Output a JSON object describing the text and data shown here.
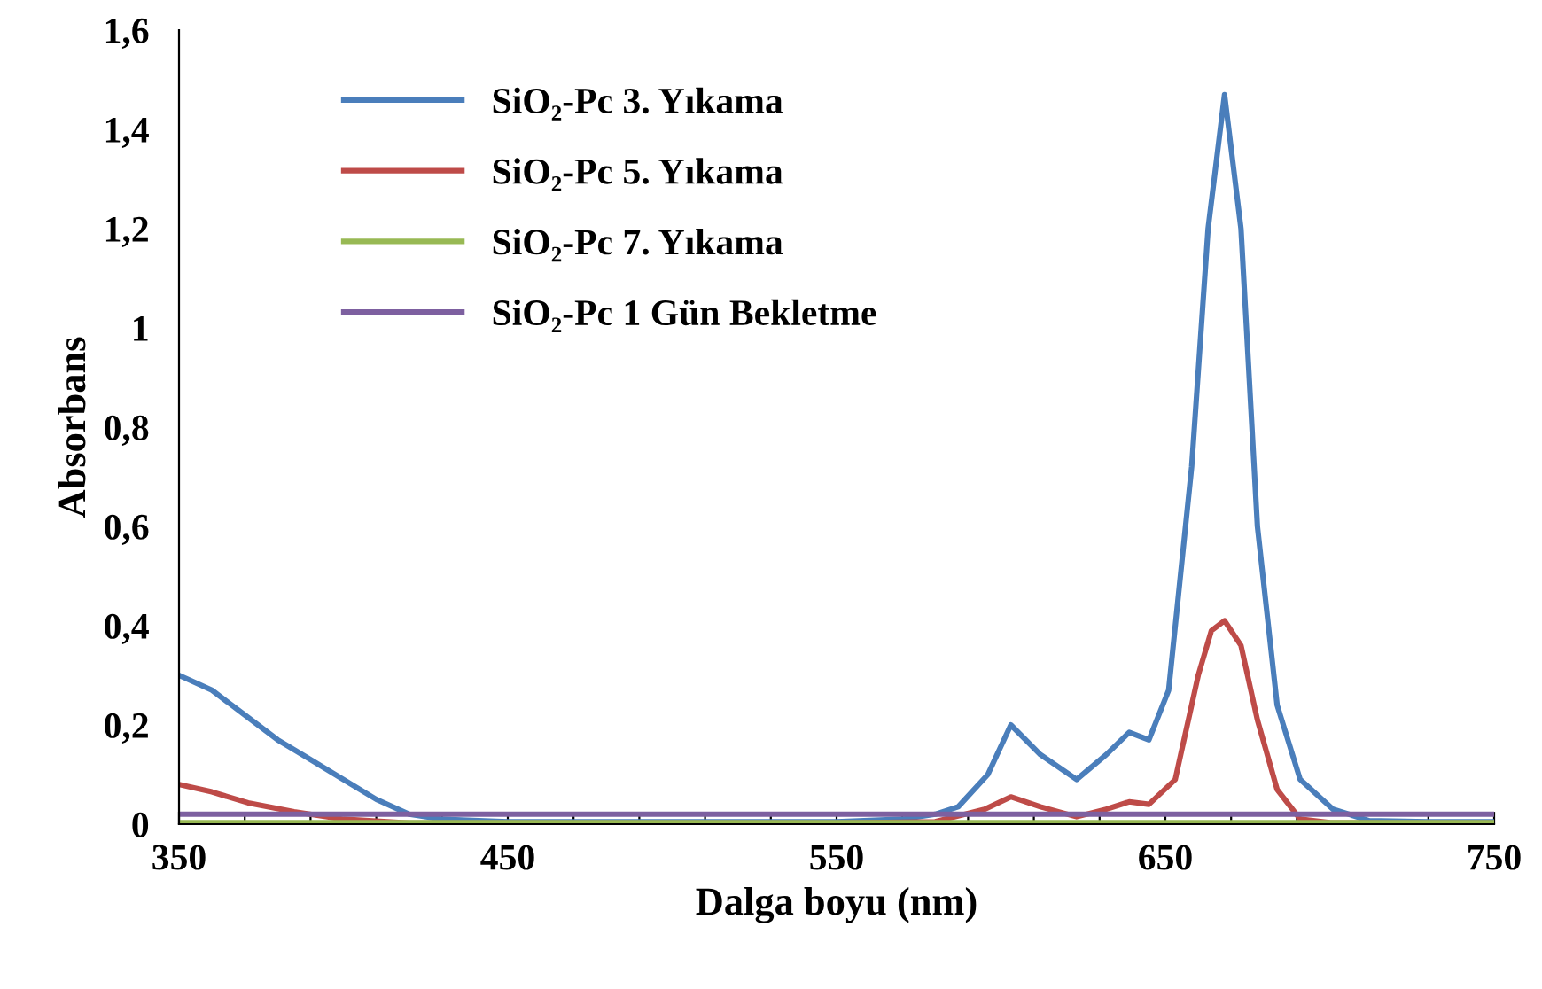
{
  "chart_data": {
    "type": "line",
    "xlabel": "Dalga boyu (nm)",
    "ylabel": "Absorbans",
    "xlim": [
      350,
      750
    ],
    "xticks": [
      350,
      {
        "value": 370,
        "label": null
      },
      {
        "value": 390,
        "label": null
      },
      {
        "value": 410,
        "label": null
      },
      {
        "value": 430,
        "label": null
      },
      450,
      {
        "value": 470,
        "label": null
      },
      {
        "value": 490,
        "label": null
      },
      {
        "value": 510,
        "label": null
      },
      {
        "value": 530,
        "label": null
      },
      550,
      {
        "value": 570,
        "label": null
      },
      {
        "value": 590,
        "label": null
      },
      {
        "value": 610,
        "label": null
      },
      {
        "value": 630,
        "label": null
      },
      650,
      {
        "value": 670,
        "label": null
      },
      {
        "value": 690,
        "label": null
      },
      {
        "value": 710,
        "label": null
      },
      {
        "value": 730,
        "label": null
      },
      750
    ],
    "ylim": [
      0,
      1.6
    ],
    "yticks": [
      0,
      {
        "value": 0.2,
        "label": "0,2"
      },
      {
        "value": 0.4,
        "label": "0,4"
      },
      {
        "value": 0.6,
        "label": "0,6"
      },
      {
        "value": 0.8,
        "label": "0,8"
      },
      1,
      {
        "value": 1.2,
        "label": "1,2"
      },
      {
        "value": 1.4,
        "label": "1,4"
      },
      {
        "value": 1.6,
        "label": "1,6"
      }
    ],
    "grid": false,
    "legend": "top left",
    "marker": "none",
    "line_style": "solid",
    "series": [
      {
        "name": "SiO₂-Pc 3. Yıkama",
        "color": "#4a7ebb",
        "x": [
          350,
          360,
          370,
          380,
          390,
          400,
          410,
          420,
          430,
          450,
          550,
          570,
          580,
          587,
          596,
          603,
          612,
          623,
          632,
          639,
          645,
          651,
          658,
          663,
          668,
          673,
          678,
          684,
          691,
          701,
          712,
          730,
          750
        ],
        "values": [
          0.3,
          0.27,
          0.22,
          0.17,
          0.13,
          0.09,
          0.05,
          0.02,
          0.01,
          0.005,
          0.005,
          0.01,
          0.02,
          0.035,
          0.1,
          0.2,
          0.14,
          0.09,
          0.14,
          0.185,
          0.17,
          0.27,
          0.72,
          1.2,
          1.47,
          1.2,
          0.6,
          0.24,
          0.09,
          0.03,
          0.007,
          0.005,
          0.005
        ]
      },
      {
        "name": "SiO₂-Pc 5. Yıkama",
        "color": "#be4b48",
        "x": [
          350,
          360,
          371,
          385,
          400,
          420,
          450,
          550,
          580,
          595,
          603,
          612,
          623,
          632,
          639,
          645,
          653,
          660,
          664,
          668,
          673,
          678,
          684,
          691,
          700,
          720,
          750
        ],
        "values": [
          0.08,
          0.065,
          0.043,
          0.025,
          0.01,
          0.002,
          0.002,
          0.002,
          0.005,
          0.03,
          0.055,
          0.035,
          0.015,
          0.03,
          0.045,
          0.04,
          0.09,
          0.3,
          0.39,
          0.41,
          0.36,
          0.21,
          0.07,
          0.01,
          0.003,
          0.002,
          0.002
        ]
      },
      {
        "name": "SiO₂-Pc 7. Yıkama",
        "color": "#98b954",
        "x": [
          350,
          750
        ],
        "values": [
          0.003,
          0.003
        ]
      },
      {
        "name": "SiO₂-Pc 1 Gün Bekletme",
        "color": "#7d60a0",
        "x": [
          350,
          750
        ],
        "values": [
          0.02,
          0.02
        ]
      }
    ]
  }
}
